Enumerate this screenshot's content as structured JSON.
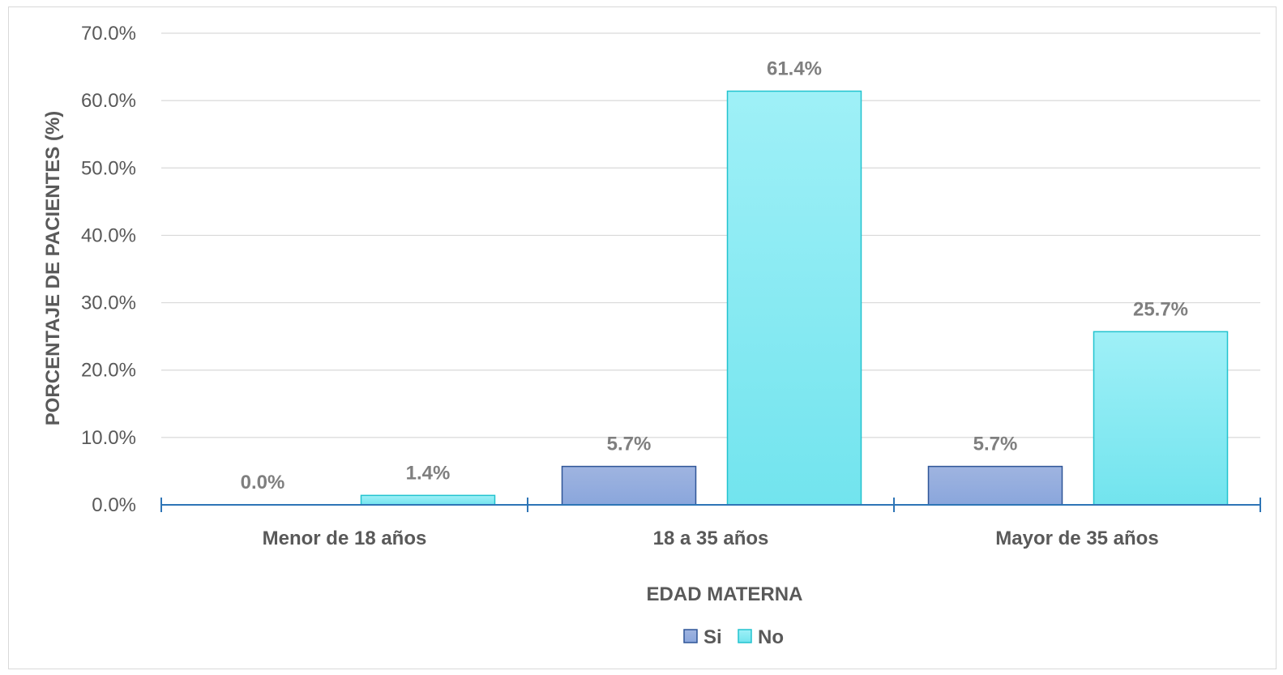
{
  "chart_data": {
    "type": "bar",
    "title": "",
    "xlabel": "EDAD MATERNA",
    "ylabel": "PORCENTAJE DE PACIENTES (%)",
    "categories": [
      "Menor de 18 años",
      "18 a 35 años",
      "Mayor de 35 años"
    ],
    "series": [
      {
        "name": "Si",
        "values": [
          0.0,
          5.7,
          5.7
        ],
        "labels": [
          "0.0%",
          "5.7%",
          "5.7%"
        ],
        "color": "#8faadc",
        "color_dark": "#2f5597"
      },
      {
        "name": "No",
        "values": [
          1.4,
          61.4,
          25.7
        ],
        "labels": [
          "1.4%",
          "61.4%",
          "25.7%"
        ],
        "color": "#79e6ef",
        "color_dark": "#22c3cf"
      }
    ],
    "ylim": [
      0,
      70
    ],
    "yticks": [
      "0.0%",
      "10.0%",
      "20.0%",
      "30.0%",
      "40.0%",
      "50.0%",
      "60.0%",
      "70.0%"
    ],
    "grid": true,
    "legend": "bottom",
    "axis_color": "#2e75b6",
    "grid_color": "#d9d9d9"
  }
}
